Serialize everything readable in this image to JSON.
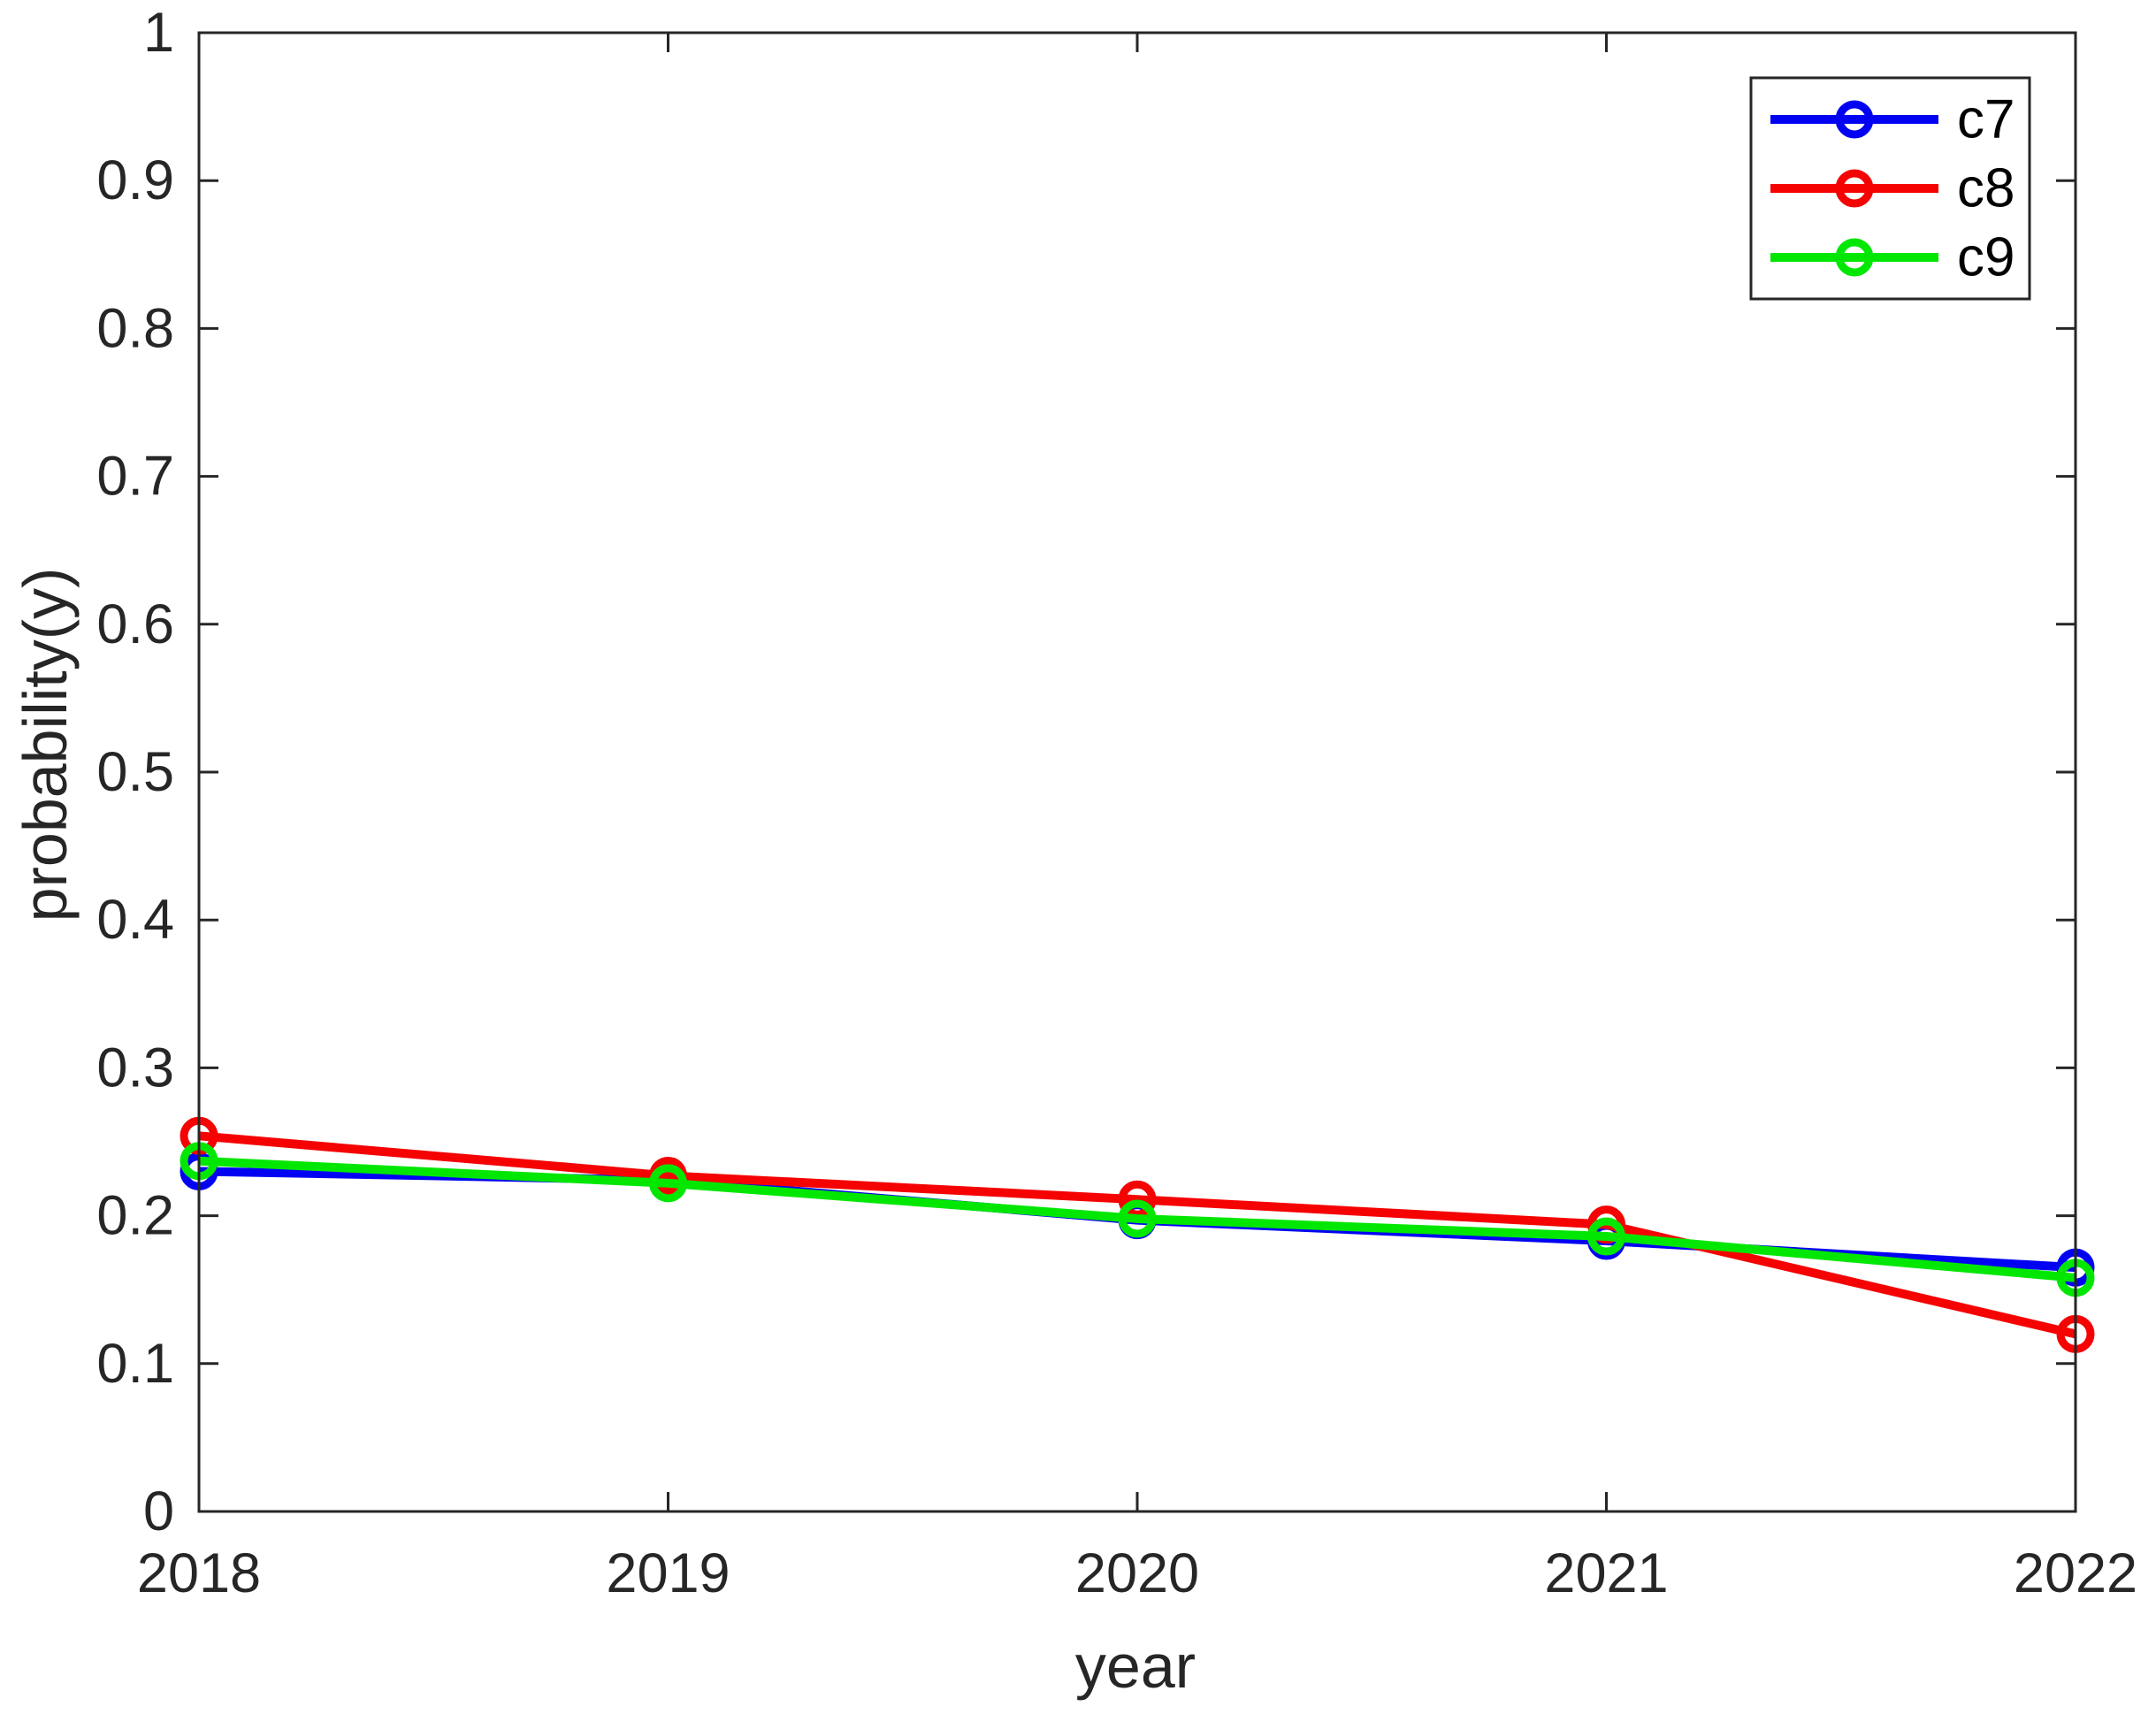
{
  "figure": {
    "background": "#ffffff",
    "axes_color": "#262626"
  },
  "chart_data": {
    "type": "line",
    "title": "",
    "xlabel": "year",
    "ylabel": "probability(y)",
    "categories": [
      2018,
      2019,
      2020,
      2021,
      2022
    ],
    "x_tick_labels": [
      "2018",
      "2019",
      "2020",
      "2021",
      "2022"
    ],
    "y_tick_values": [
      0,
      0.1,
      0.2,
      0.3,
      0.4,
      0.5,
      0.6,
      0.7,
      0.8,
      0.9,
      1
    ],
    "y_tick_labels": [
      "0",
      "0.1",
      "0.2",
      "0.3",
      "0.4",
      "0.5",
      "0.6",
      "0.7",
      "0.8",
      "0.9",
      "1"
    ],
    "xlim": [
      2018,
      2022
    ],
    "ylim": [
      0,
      1
    ],
    "grid": false,
    "legend": {
      "position": "top-right",
      "entries": [
        "c7",
        "c8",
        "c9"
      ]
    },
    "series": [
      {
        "name": "c7",
        "color": "#0202f2",
        "marker": "circle",
        "values": [
          0.23,
          0.224,
          0.197,
          0.183,
          0.165
        ]
      },
      {
        "name": "c8",
        "color": "#f50202",
        "marker": "circle",
        "values": [
          0.254,
          0.227,
          0.211,
          0.194,
          0.12
        ]
      },
      {
        "name": "c9",
        "color": "#02e702",
        "marker": "circle",
        "values": [
          0.237,
          0.222,
          0.198,
          0.186,
          0.158
        ]
      }
    ]
  }
}
